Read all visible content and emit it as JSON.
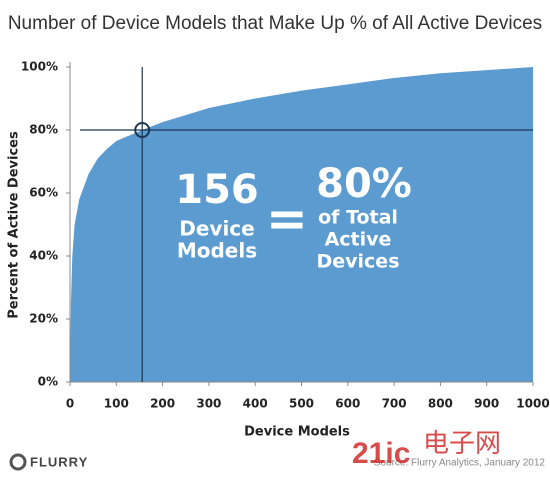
{
  "chart_data": {
    "type": "area",
    "title": "Number of Device Models that Make Up % of All Active Devices",
    "x_label": "Device Models",
    "y_label": "Percent of Active Devices",
    "x": [
      0,
      2,
      5,
      10,
      20,
      40,
      60,
      80,
      100,
      156,
      200,
      300,
      400,
      500,
      600,
      700,
      800,
      900,
      1000
    ],
    "values": [
      0,
      25,
      40,
      50,
      58,
      66,
      71,
      74,
      76.5,
      80,
      82.5,
      87,
      90,
      92.5,
      94.5,
      96.5,
      98,
      99,
      100
    ],
    "color": "#5b9bd0",
    "xlim": [
      0,
      1000
    ],
    "ylim": [
      0,
      100
    ],
    "xticks": [
      0,
      100,
      200,
      300,
      400,
      500,
      600,
      700,
      800,
      900,
      1000
    ],
    "yticks": [
      {
        "value": 0,
        "label": "0%"
      },
      {
        "value": 20,
        "label": "20%"
      },
      {
        "value": 40,
        "label": "40%"
      },
      {
        "value": 60,
        "label": "60%"
      },
      {
        "value": 80,
        "label": "80%"
      },
      {
        "value": 100,
        "label": "100%"
      }
    ],
    "highlight": {
      "x": 156,
      "y": 80,
      "color": "#1c3552"
    },
    "annotations": {
      "count": "156",
      "count_label": [
        "Device",
        "Models"
      ],
      "equals": "=",
      "share": "80%",
      "share_label": [
        "of Total",
        "Active",
        "Devices"
      ]
    }
  },
  "footer": {
    "logo": "FLURRY",
    "source": "Source: Flurry Analytics, January 2012",
    "watermark": [
      "21ic",
      "电子网"
    ]
  }
}
